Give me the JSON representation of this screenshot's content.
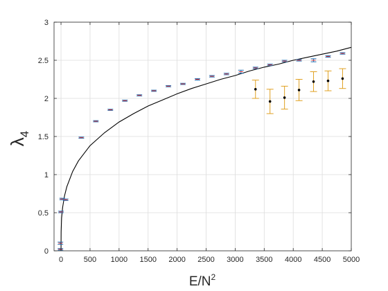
{
  "chart_data": {
    "type": "scatter",
    "title": "",
    "xlabel": {
      "base": "E/N",
      "sup": "2"
    },
    "ylabel": {
      "base": "λ",
      "sub": "4"
    },
    "xlim": [
      -120,
      5000
    ],
    "ylim": [
      0,
      3
    ],
    "xticks": [
      0,
      500,
      1000,
      1500,
      2000,
      2500,
      3000,
      3500,
      4000,
      4500,
      5000
    ],
    "yticks": [
      0,
      0.5,
      1,
      1.5,
      2,
      2.5,
      3
    ],
    "grid": true,
    "colors": {
      "blue_series": "#1f6fb4",
      "blue_error": "#1f6fb4",
      "red_mark": "#e03030",
      "orange_error": "#e0a020",
      "black_points": "#000000",
      "curve": "#000000",
      "grid": "#dcdcdc",
      "axes": "#262626"
    },
    "series": [
      {
        "style": "blue-errorbar",
        "points": [
          {
            "x": -10,
            "y": 0.02,
            "err": 0.01
          },
          {
            "x": -10,
            "y": 0.1,
            "err": 0.015
          },
          {
            "x": 0,
            "y": 0.51,
            "err": 0.01
          },
          {
            "x": 20,
            "y": 0.68,
            "err": 0.01
          },
          {
            "x": 80,
            "y": 0.67,
            "err": 0.01
          },
          {
            "x": 350,
            "y": 1.485,
            "err": 0.008
          },
          {
            "x": 600,
            "y": 1.7,
            "err": 0.008
          },
          {
            "x": 850,
            "y": 1.85,
            "err": 0.008
          },
          {
            "x": 1100,
            "y": 1.97,
            "err": 0.008
          },
          {
            "x": 1350,
            "y": 2.04,
            "err": 0.008
          },
          {
            "x": 1600,
            "y": 2.1,
            "err": 0.008
          },
          {
            "x": 1850,
            "y": 2.16,
            "err": 0.008
          },
          {
            "x": 2100,
            "y": 2.19,
            "err": 0.008
          },
          {
            "x": 2350,
            "y": 2.25,
            "err": 0.01
          },
          {
            "x": 2600,
            "y": 2.29,
            "err": 0.01
          },
          {
            "x": 2850,
            "y": 2.32,
            "err": 0.01
          },
          {
            "x": 3100,
            "y": 2.35,
            "err": 0.02
          },
          {
            "x": 3350,
            "y": 2.4,
            "err": 0.01
          },
          {
            "x": 3600,
            "y": 2.44,
            "err": 0.01
          },
          {
            "x": 3850,
            "y": 2.49,
            "err": 0.01
          },
          {
            "x": 4100,
            "y": 2.5,
            "err": 0.01
          },
          {
            "x": 4350,
            "y": 2.5,
            "err": 0.02
          },
          {
            "x": 4600,
            "y": 2.55,
            "err": 0.01
          },
          {
            "x": 4850,
            "y": 2.59,
            "err": 0.01
          }
        ]
      },
      {
        "style": "black-point-orange-errorbar",
        "points": [
          {
            "x": 3350,
            "y": 2.12,
            "err": 0.12
          },
          {
            "x": 3600,
            "y": 1.96,
            "err": 0.16
          },
          {
            "x": 3850,
            "y": 2.01,
            "err": 0.15
          },
          {
            "x": 4100,
            "y": 2.11,
            "err": 0.14
          },
          {
            "x": 4350,
            "y": 2.22,
            "err": 0.13
          },
          {
            "x": 4600,
            "y": 2.23,
            "err": 0.13
          },
          {
            "x": 4850,
            "y": 2.26,
            "err": 0.13
          }
        ]
      },
      {
        "style": "curve",
        "points": [
          {
            "x": 0,
            "y": 0.0
          },
          {
            "x": 2,
            "y": 0.25
          },
          {
            "x": 10,
            "y": 0.43
          },
          {
            "x": 30,
            "y": 0.58
          },
          {
            "x": 60,
            "y": 0.72
          },
          {
            "x": 100,
            "y": 0.84
          },
          {
            "x": 200,
            "y": 1.04
          },
          {
            "x": 300,
            "y": 1.18
          },
          {
            "x": 500,
            "y": 1.38
          },
          {
            "x": 750,
            "y": 1.55
          },
          {
            "x": 1000,
            "y": 1.69
          },
          {
            "x": 1250,
            "y": 1.8
          },
          {
            "x": 1500,
            "y": 1.9
          },
          {
            "x": 1750,
            "y": 1.98
          },
          {
            "x": 2000,
            "y": 2.06
          },
          {
            "x": 2250,
            "y": 2.13
          },
          {
            "x": 2500,
            "y": 2.19
          },
          {
            "x": 2750,
            "y": 2.25
          },
          {
            "x": 3000,
            "y": 2.3
          },
          {
            "x": 3250,
            "y": 2.36
          },
          {
            "x": 3500,
            "y": 2.41
          },
          {
            "x": 3750,
            "y": 2.45
          },
          {
            "x": 4000,
            "y": 2.5
          },
          {
            "x": 4250,
            "y": 2.54
          },
          {
            "x": 4500,
            "y": 2.58
          },
          {
            "x": 4750,
            "y": 2.62
          },
          {
            "x": 5000,
            "y": 2.67
          }
        ]
      }
    ]
  }
}
